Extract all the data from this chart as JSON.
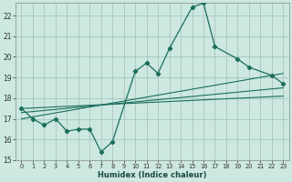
{
  "xlabel": "Humidex (Indice chaleur)",
  "bg_color": "#cce8e0",
  "grid_color": "#aaccc4",
  "line_color": "#1a6e5e",
  "xlim": [
    -0.5,
    23.5
  ],
  "ylim": [
    15,
    22.6
  ],
  "yticks": [
    15,
    16,
    17,
    18,
    19,
    20,
    21,
    22
  ],
  "xticks": [
    0,
    1,
    2,
    3,
    4,
    5,
    6,
    7,
    8,
    9,
    10,
    11,
    12,
    13,
    14,
    15,
    16,
    17,
    18,
    19,
    20,
    21,
    22,
    23
  ],
  "main_x": [
    0,
    1,
    2,
    3,
    4,
    5,
    6,
    7,
    8,
    10,
    11,
    12,
    13,
    15,
    16,
    17,
    19,
    20,
    22,
    23
  ],
  "main_y": [
    17.5,
    17.0,
    16.7,
    17.0,
    16.4,
    16.5,
    16.5,
    15.4,
    15.9,
    19.3,
    19.7,
    19.2,
    20.4,
    22.4,
    22.6,
    20.5,
    19.9,
    19.5,
    19.1,
    18.7
  ],
  "trend1_x": [
    0,
    23
  ],
  "trend1_y": [
    17.3,
    18.5
  ],
  "trend2_x": [
    0,
    23
  ],
  "trend2_y": [
    17.0,
    19.2
  ],
  "trend3_x": [
    0,
    23
  ],
  "trend3_y": [
    17.5,
    18.1
  ]
}
